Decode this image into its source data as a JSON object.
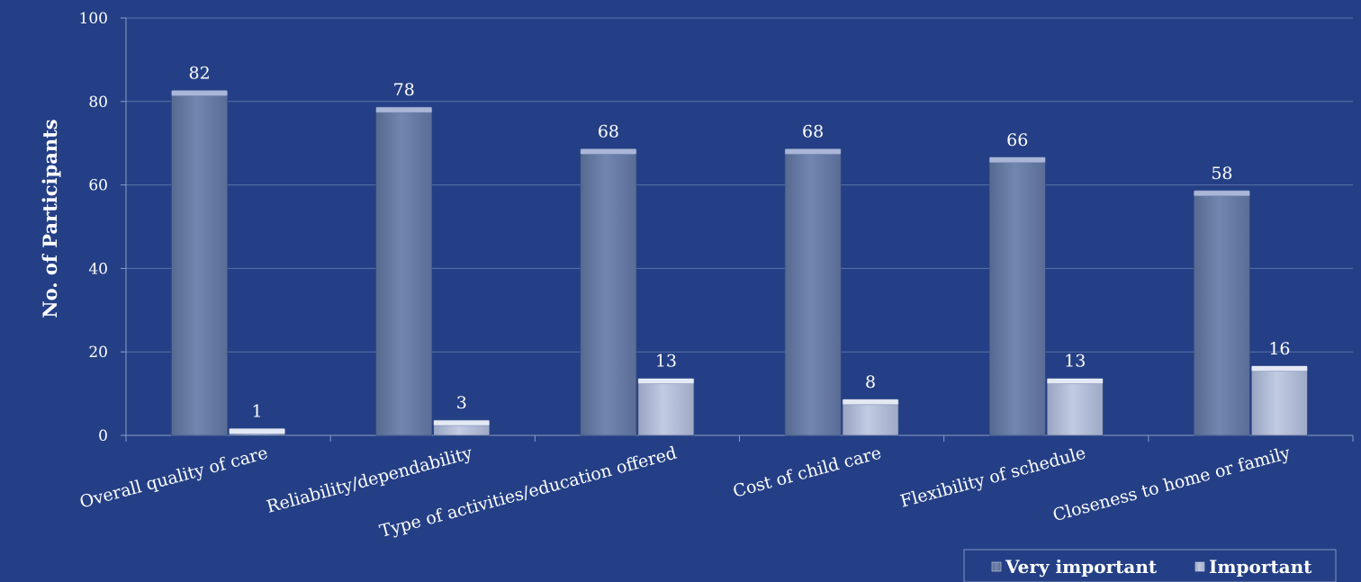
{
  "chart_data": {
    "type": "bar",
    "ylabel": "No. of Participants",
    "ylim": [
      0,
      100
    ],
    "yticks": [
      0,
      20,
      40,
      60,
      80,
      100
    ],
    "grid": true,
    "legend_position": "bottom-right",
    "categories": [
      "Overall quality of care",
      "Reliability/dependability",
      "Type of activities/education offered",
      "Cost of child care",
      "Flexibility of schedule",
      "Closeness to home or family"
    ],
    "series": [
      {
        "name": "Very important",
        "values": [
          82,
          78,
          68,
          68,
          66,
          58
        ],
        "color": "#6b7ea8"
      },
      {
        "name": "Important",
        "values": [
          1,
          3,
          13,
          8,
          13,
          16
        ],
        "color": "#b2bcd6"
      }
    ]
  },
  "colors": {
    "background": "#243f85",
    "gridline": "#5a72aa",
    "axis": "#8a9cc6",
    "text": "#ffffff"
  }
}
